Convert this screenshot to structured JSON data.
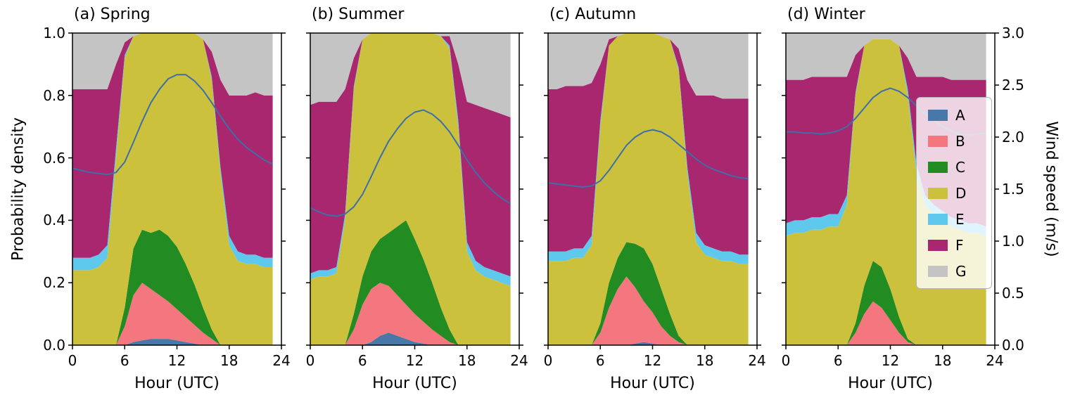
{
  "chart_data": {
    "type": "area",
    "stacked": true,
    "grid": false,
    "classes": [
      "A",
      "B",
      "C",
      "D",
      "E",
      "F",
      "G"
    ],
    "colors": {
      "A": "#4878a8",
      "B": "#f4767e",
      "C": "#228b22",
      "D": "#ccc13d",
      "E": "#5ec8ed",
      "F": "#a8276f",
      "G": "#c4c4c4"
    },
    "line_color": "#3d6fa8",
    "x": [
      0,
      1,
      2,
      3,
      4,
      5,
      6,
      7,
      8,
      9,
      10,
      11,
      12,
      13,
      14,
      15,
      16,
      17,
      18,
      19,
      20,
      21,
      22,
      23
    ],
    "x_axis": {
      "label": "Hour (UTC)",
      "ticks": [
        0,
        6,
        12,
        18,
        24
      ],
      "range": [
        0,
        24
      ]
    },
    "y_axis_left": {
      "label": "Probability density",
      "ticks": [
        "0.0",
        "0.2",
        "0.4",
        "0.6",
        "0.8",
        "1.0"
      ],
      "range": [
        0,
        1
      ]
    },
    "y_axis_right": {
      "label": "Wind speed (m/s)",
      "ticks": [
        "0.0",
        "0.5",
        "1.0",
        "1.5",
        "2.0",
        "2.5",
        "3.0"
      ],
      "range": [
        0,
        3
      ]
    },
    "legend": {
      "position": "upper right of panel d",
      "entries": [
        "A",
        "B",
        "C",
        "D",
        "E",
        "F",
        "G"
      ]
    },
    "panels": [
      {
        "id": "a",
        "title": "(a) Spring",
        "series": {
          "A": [
            0,
            0,
            0,
            0,
            0,
            0,
            0,
            0.01,
            0.015,
            0.02,
            0.02,
            0.02,
            0.015,
            0.01,
            0.005,
            0,
            0,
            0,
            0,
            0,
            0,
            0,
            0,
            0
          ],
          "B": [
            0,
            0,
            0,
            0,
            0,
            0,
            0.06,
            0.15,
            0.185,
            0.16,
            0.14,
            0.12,
            0.1,
            0.08,
            0.06,
            0.04,
            0.02,
            0,
            0,
            0,
            0,
            0,
            0,
            0
          ],
          "C": [
            0,
            0,
            0,
            0,
            0,
            0,
            0.06,
            0.15,
            0.17,
            0.18,
            0.21,
            0.21,
            0.2,
            0.17,
            0.13,
            0.08,
            0.03,
            0,
            0,
            0,
            0,
            0,
            0,
            0
          ],
          "D": [
            0.24,
            0.24,
            0.24,
            0.25,
            0.28,
            0.6,
            0.8,
            0.68,
            0.63,
            0.64,
            0.63,
            0.65,
            0.685,
            0.74,
            0.805,
            0.86,
            0.8,
            0.55,
            0.32,
            0.27,
            0.26,
            0.26,
            0.25,
            0.25
          ],
          "E": [
            0.04,
            0.04,
            0.04,
            0.04,
            0.04,
            0.03,
            0.01,
            0,
            0,
            0,
            0,
            0,
            0,
            0,
            0,
            0,
            0.01,
            0.02,
            0.03,
            0.03,
            0.03,
            0.03,
            0.03,
            0.03
          ],
          "F": [
            0.54,
            0.54,
            0.54,
            0.53,
            0.5,
            0.27,
            0.04,
            0,
            0,
            0,
            0,
            0,
            0,
            0,
            0,
            0,
            0.08,
            0.28,
            0.45,
            0.5,
            0.51,
            0.52,
            0.52,
            0.52
          ],
          "G": [
            0.18,
            0.18,
            0.18,
            0.18,
            0.18,
            0.1,
            0.03,
            0.01,
            0,
            0,
            0,
            0,
            0,
            0,
            0,
            0.02,
            0.06,
            0.15,
            0.2,
            0.2,
            0.2,
            0.19,
            0.2,
            0.2
          ]
        },
        "wind_speed": [
          1.7,
          1.68,
          1.66,
          1.65,
          1.64,
          1.66,
          1.76,
          1.95,
          2.15,
          2.33,
          2.46,
          2.56,
          2.6,
          2.6,
          2.54,
          2.45,
          2.33,
          2.2,
          2.08,
          1.98,
          1.9,
          1.84,
          1.78,
          1.74
        ]
      },
      {
        "id": "b",
        "title": "(b) Summer",
        "series": {
          "A": [
            0,
            0,
            0,
            0,
            0,
            0,
            0,
            0.01,
            0.03,
            0.04,
            0.03,
            0.02,
            0.01,
            0.005,
            0,
            0,
            0,
            0,
            0,
            0,
            0,
            0,
            0,
            0
          ],
          "B": [
            0,
            0,
            0,
            0,
            0,
            0.05,
            0.13,
            0.17,
            0.17,
            0.15,
            0.13,
            0.11,
            0.09,
            0.07,
            0.05,
            0.03,
            0.01,
            0,
            0,
            0,
            0,
            0,
            0,
            0
          ],
          "C": [
            0,
            0,
            0,
            0,
            0,
            0.05,
            0.09,
            0.12,
            0.14,
            0.17,
            0.22,
            0.27,
            0.24,
            0.2,
            0.15,
            0.09,
            0.04,
            0,
            0,
            0,
            0,
            0,
            0,
            0
          ],
          "D": [
            0.21,
            0.22,
            0.22,
            0.23,
            0.4,
            0.72,
            0.76,
            0.7,
            0.66,
            0.64,
            0.62,
            0.6,
            0.66,
            0.725,
            0.8,
            0.87,
            0.9,
            0.7,
            0.3,
            0.24,
            0.22,
            0.21,
            0.2,
            0.19
          ],
          "E": [
            0.02,
            0.02,
            0.02,
            0.02,
            0.02,
            0.01,
            0,
            0,
            0,
            0,
            0,
            0,
            0,
            0,
            0,
            0,
            0.01,
            0.02,
            0.03,
            0.03,
            0.03,
            0.03,
            0.03,
            0.03
          ],
          "F": [
            0.54,
            0.54,
            0.54,
            0.53,
            0.4,
            0.09,
            0,
            0,
            0,
            0,
            0,
            0,
            0,
            0,
            0,
            0,
            0.03,
            0.18,
            0.45,
            0.5,
            0.51,
            0.51,
            0.51,
            0.51
          ],
          "G": [
            0.23,
            0.22,
            0.22,
            0.22,
            0.18,
            0.08,
            0.02,
            0,
            0,
            0,
            0,
            0,
            0,
            0,
            0,
            0.01,
            0.01,
            0.1,
            0.22,
            0.23,
            0.24,
            0.25,
            0.26,
            0.27
          ]
        },
        "wind_speed": [
          1.32,
          1.28,
          1.25,
          1.24,
          1.26,
          1.33,
          1.45,
          1.62,
          1.8,
          1.96,
          2.08,
          2.18,
          2.24,
          2.26,
          2.22,
          2.15,
          2.05,
          1.92,
          1.78,
          1.66,
          1.56,
          1.48,
          1.41,
          1.36
        ]
      },
      {
        "id": "c",
        "title": "(c) Autumn",
        "series": {
          "A": [
            0,
            0,
            0,
            0,
            0,
            0,
            0,
            0,
            0,
            0,
            0.005,
            0.01,
            0.005,
            0,
            0,
            0,
            0,
            0,
            0,
            0,
            0,
            0,
            0,
            0
          ],
          "B": [
            0,
            0,
            0,
            0,
            0,
            0,
            0.04,
            0.12,
            0.18,
            0.22,
            0.18,
            0.13,
            0.1,
            0.06,
            0.03,
            0.01,
            0,
            0,
            0,
            0,
            0,
            0,
            0,
            0
          ],
          "C": [
            0,
            0,
            0,
            0,
            0,
            0,
            0.03,
            0.08,
            0.1,
            0.11,
            0.14,
            0.17,
            0.155,
            0.12,
            0.07,
            0.02,
            0,
            0,
            0,
            0,
            0,
            0,
            0,
            0
          ],
          "D": [
            0.27,
            0.27,
            0.27,
            0.28,
            0.28,
            0.32,
            0.63,
            0.76,
            0.71,
            0.67,
            0.675,
            0.69,
            0.74,
            0.81,
            0.88,
            0.85,
            0.55,
            0.33,
            0.29,
            0.28,
            0.27,
            0.27,
            0.26,
            0.26
          ],
          "E": [
            0.03,
            0.03,
            0.03,
            0.03,
            0.03,
            0.03,
            0.02,
            0,
            0,
            0,
            0,
            0,
            0,
            0,
            0,
            0.01,
            0.02,
            0.03,
            0.03,
            0.03,
            0.03,
            0.03,
            0.03,
            0.03
          ],
          "F": [
            0.52,
            0.52,
            0.53,
            0.52,
            0.52,
            0.49,
            0.18,
            0.02,
            0,
            0,
            0,
            0,
            0,
            0,
            0,
            0.06,
            0.28,
            0.44,
            0.48,
            0.49,
            0.49,
            0.49,
            0.5,
            0.5
          ],
          "G": [
            0.18,
            0.18,
            0.17,
            0.17,
            0.17,
            0.16,
            0.1,
            0.02,
            0.01,
            0,
            0,
            0,
            0,
            0.01,
            0.02,
            0.05,
            0.15,
            0.2,
            0.2,
            0.2,
            0.21,
            0.21,
            0.21,
            0.21
          ]
        },
        "wind_speed": [
          1.56,
          1.55,
          1.54,
          1.53,
          1.52,
          1.53,
          1.58,
          1.68,
          1.8,
          1.92,
          2.0,
          2.05,
          2.07,
          2.05,
          2.0,
          1.93,
          1.86,
          1.79,
          1.73,
          1.69,
          1.66,
          1.63,
          1.61,
          1.6
        ]
      },
      {
        "id": "d",
        "title": "(d) Winter",
        "series": {
          "A": [
            0,
            0,
            0,
            0,
            0,
            0,
            0,
            0,
            0,
            0,
            0,
            0,
            0,
            0,
            0,
            0,
            0,
            0,
            0,
            0,
            0,
            0,
            0,
            0
          ],
          "B": [
            0,
            0,
            0,
            0,
            0,
            0,
            0,
            0,
            0.04,
            0.1,
            0.14,
            0.12,
            0.08,
            0.04,
            0.01,
            0,
            0,
            0,
            0,
            0,
            0,
            0,
            0,
            0
          ],
          "C": [
            0,
            0,
            0,
            0,
            0,
            0,
            0,
            0,
            0.03,
            0.09,
            0.13,
            0.13,
            0.1,
            0.05,
            0.01,
            0,
            0,
            0,
            0,
            0,
            0,
            0,
            0,
            0
          ],
          "D": [
            0.35,
            0.36,
            0.36,
            0.37,
            0.37,
            0.38,
            0.38,
            0.45,
            0.73,
            0.77,
            0.71,
            0.73,
            0.8,
            0.87,
            0.78,
            0.55,
            0.45,
            0.42,
            0.4,
            0.38,
            0.37,
            0.36,
            0.36,
            0.35
          ],
          "E": [
            0.04,
            0.04,
            0.04,
            0.04,
            0.04,
            0.04,
            0.04,
            0.03,
            0.01,
            0,
            0,
            0,
            0,
            0,
            0.02,
            0.03,
            0.03,
            0.03,
            0.03,
            0.03,
            0.03,
            0.03,
            0.03,
            0.03
          ],
          "F": [
            0.46,
            0.45,
            0.45,
            0.45,
            0.45,
            0.44,
            0.44,
            0.38,
            0.12,
            0,
            0,
            0,
            0,
            0,
            0.1,
            0.28,
            0.38,
            0.41,
            0.43,
            0.44,
            0.45,
            0.46,
            0.46,
            0.47
          ],
          "G": [
            0.15,
            0.15,
            0.15,
            0.14,
            0.14,
            0.14,
            0.14,
            0.14,
            0.07,
            0.04,
            0.02,
            0.02,
            0.02,
            0.04,
            0.08,
            0.14,
            0.14,
            0.14,
            0.14,
            0.15,
            0.15,
            0.15,
            0.15,
            0.15
          ]
        },
        "wind_speed": [
          2.05,
          2.05,
          2.04,
          2.04,
          2.03,
          2.04,
          2.06,
          2.1,
          2.18,
          2.28,
          2.38,
          2.44,
          2.47,
          2.44,
          2.38,
          2.3,
          2.22,
          2.16,
          2.1,
          2.06,
          2.03,
          2.02,
          2.03,
          2.04
        ]
      }
    ]
  }
}
